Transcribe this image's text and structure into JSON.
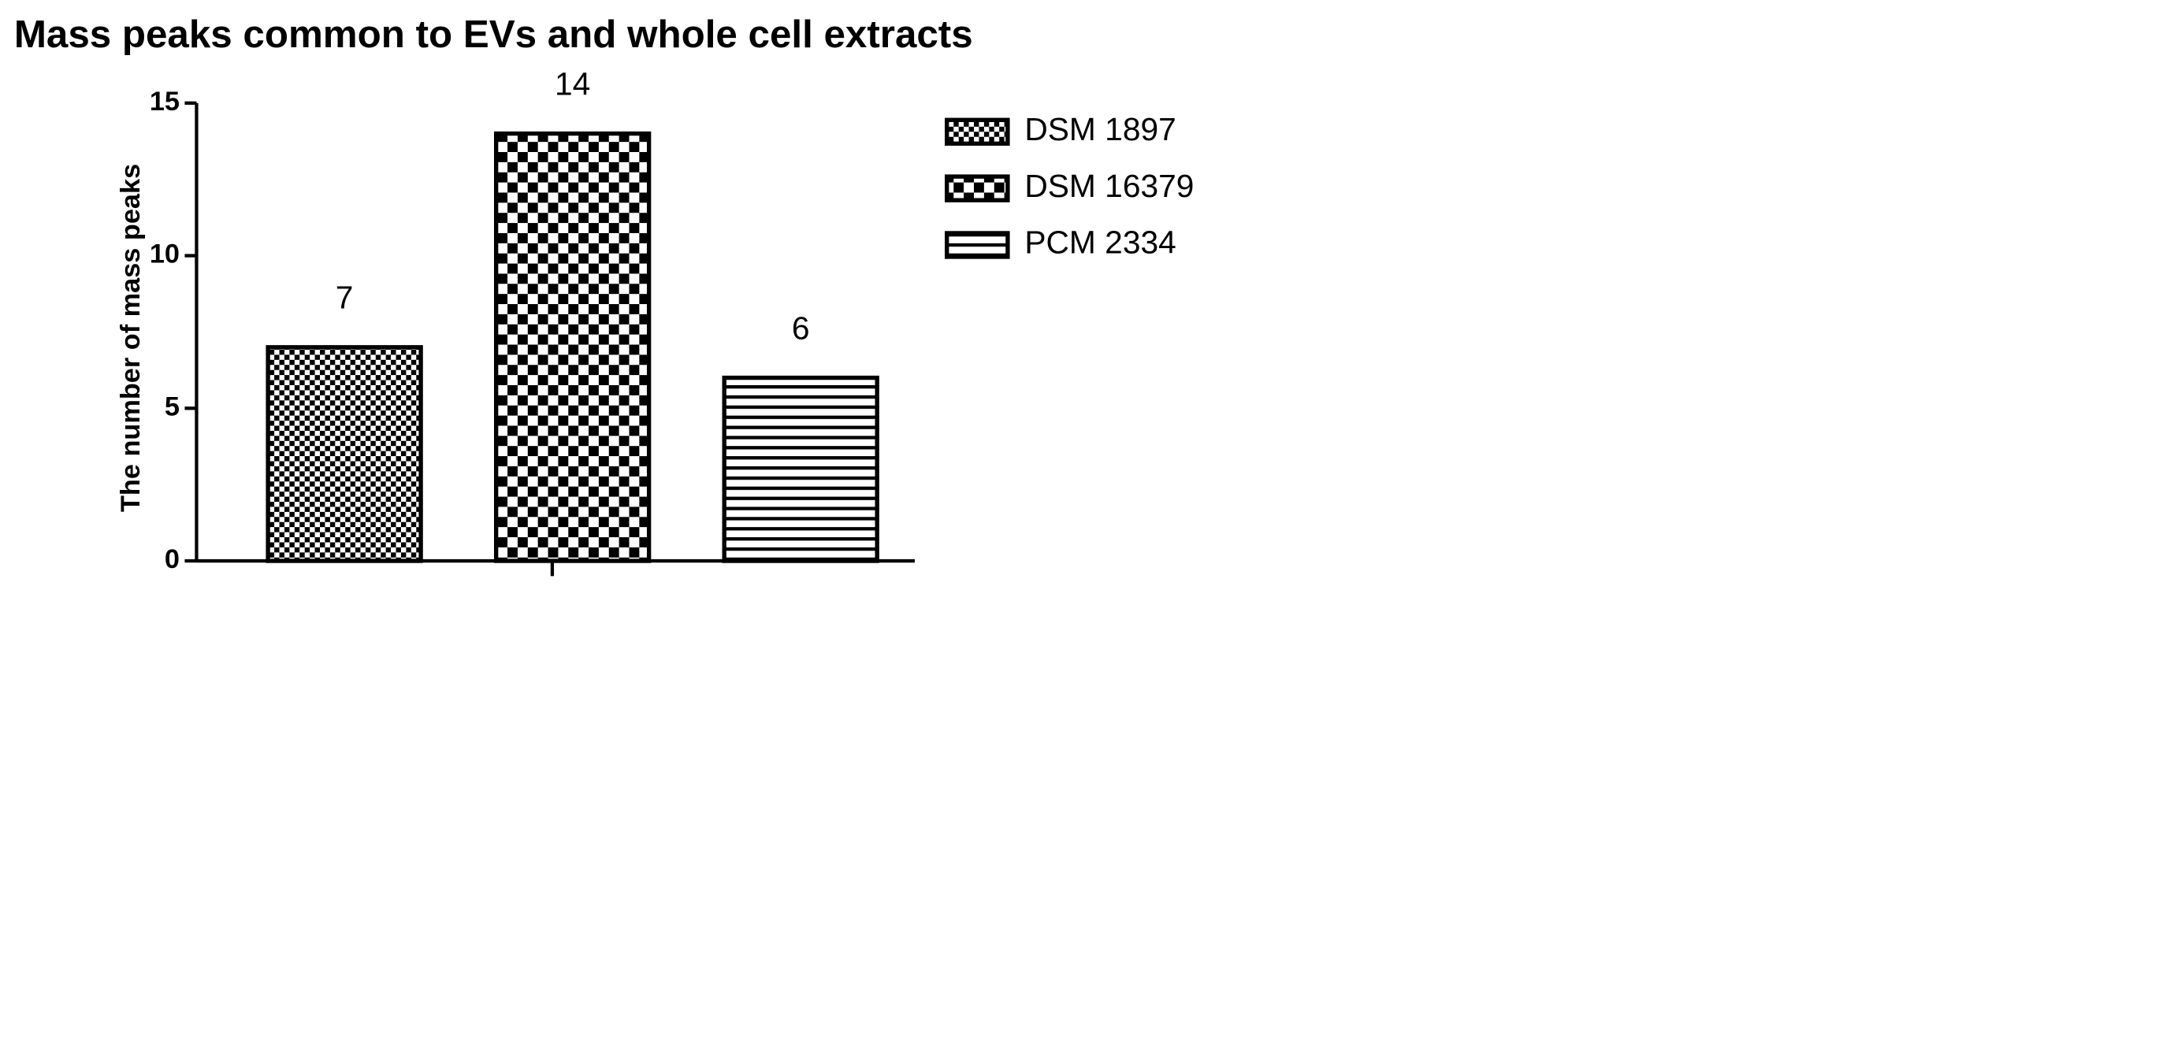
{
  "chart_data": {
    "type": "bar",
    "title": "Mass peaks common to EVs and whole cell extracts",
    "y_label": "The number of mass peaks",
    "series": [
      {
        "name": "DSM 1897",
        "color": "#000000",
        "pattern": "fine-checker",
        "values": [
          7
        ]
      },
      {
        "name": "DSM 16379",
        "color": "#000000",
        "pattern": "checker",
        "values": [
          14
        ]
      },
      {
        "name": "PCM 2334",
        "color": "#000000",
        "pattern": "horizontal-lines",
        "values": [
          6
        ]
      }
    ],
    "ylim": [
      0,
      15
    ],
    "yticks": [
      0,
      5,
      10,
      15
    ],
    "legend": "right"
  }
}
